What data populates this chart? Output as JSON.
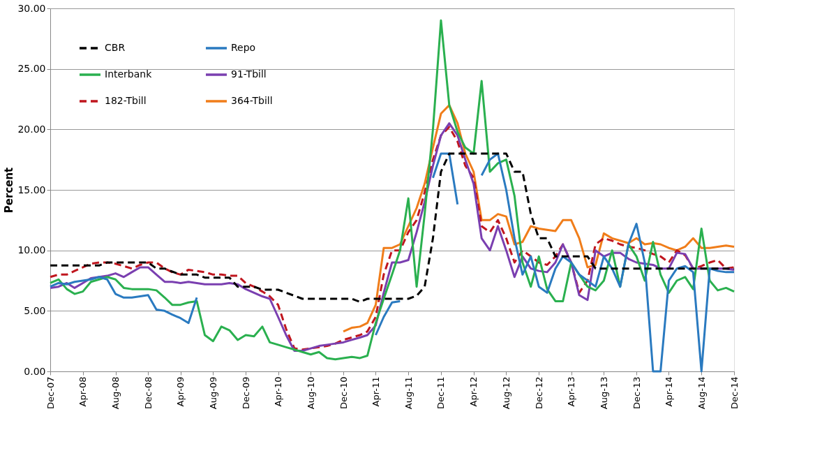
{
  "chart_data": {
    "type": "line",
    "ylabel": "Percent",
    "x": [
      "2007-12",
      "2008-01",
      "2008-02",
      "2008-03",
      "2008-04",
      "2008-05",
      "2008-06",
      "2008-07",
      "2008-08",
      "2008-09",
      "2008-10",
      "2008-11",
      "2008-12",
      "2009-01",
      "2009-02",
      "2009-03",
      "2009-04",
      "2009-05",
      "2009-06",
      "2009-07",
      "2009-08",
      "2009-09",
      "2009-10",
      "2009-11",
      "2009-12",
      "2010-01",
      "2010-02",
      "2010-03",
      "2010-04",
      "2010-05",
      "2010-06",
      "2010-07",
      "2010-08",
      "2010-09",
      "2010-10",
      "2010-11",
      "2010-12",
      "2011-01",
      "2011-02",
      "2011-03",
      "2011-04",
      "2011-05",
      "2011-06",
      "2011-07",
      "2011-08",
      "2011-09",
      "2011-10",
      "2011-11",
      "2011-12",
      "2012-01",
      "2012-02",
      "2012-03",
      "2012-04",
      "2012-05",
      "2012-06",
      "2012-07",
      "2012-08",
      "2012-09",
      "2012-10",
      "2012-11",
      "2012-12",
      "2013-01",
      "2013-02",
      "2013-03",
      "2013-04",
      "2013-05",
      "2013-06",
      "2013-07",
      "2013-08",
      "2013-09",
      "2013-10",
      "2013-11",
      "2013-12",
      "2014-01",
      "2014-02",
      "2014-03",
      "2014-04",
      "2014-05",
      "2014-06",
      "2014-07",
      "2014-08",
      "2014-09",
      "2014-10",
      "2014-11",
      "2014-12"
    ],
    "series": [
      {
        "name": "CBR",
        "color": "#000000",
        "line_style": "dashed",
        "values": [
          8.75,
          8.75,
          8.75,
          8.75,
          8.75,
          8.75,
          8.75,
          9.0,
          9.0,
          9.0,
          9.0,
          9.0,
          9.0,
          8.5,
          8.5,
          8.25,
          8.0,
          8.0,
          8.0,
          7.75,
          7.75,
          7.75,
          7.75,
          7.0,
          7.0,
          7.0,
          6.75,
          6.75,
          6.75,
          6.5,
          6.25,
          6.0,
          6.0,
          6.0,
          6.0,
          6.0,
          6.0,
          6.0,
          5.75,
          6.0,
          6.0,
          6.0,
          6.0,
          6.0,
          6.0,
          6.25,
          7.0,
          11.0,
          16.5,
          18.0,
          18.0,
          18.0,
          18.0,
          18.0,
          18.0,
          18.0,
          18.0,
          16.5,
          16.5,
          13.0,
          11.0,
          11.0,
          9.5,
          9.5,
          9.5,
          9.5,
          9.5,
          8.5,
          8.5,
          8.5,
          8.5,
          8.5,
          8.5,
          8.5,
          8.5,
          8.5,
          8.5,
          8.5,
          8.5,
          8.5,
          8.5,
          8.5,
          8.5,
          8.5,
          8.5
        ]
      },
      {
        "name": "Repo",
        "color": "#2a7ac0",
        "line_style": "solid",
        "values": [
          7.0,
          7.3,
          7.2,
          7.4,
          7.5,
          7.6,
          7.8,
          7.6,
          6.4,
          6.1,
          6.1,
          6.2,
          6.3,
          5.1,
          5.0,
          4.7,
          4.4,
          4.0,
          6.1,
          null,
          null,
          null,
          null,
          null,
          null,
          null,
          null,
          null,
          null,
          null,
          null,
          null,
          null,
          null,
          null,
          null,
          null,
          null,
          null,
          null,
          3.0,
          4.5,
          5.7,
          5.8,
          null,
          null,
          null,
          16.0,
          18.0,
          18.0,
          13.8,
          null,
          null,
          16.2,
          17.5,
          18.0,
          15.0,
          11.0,
          8.0,
          9.5,
          7.0,
          6.5,
          8.5,
          9.5,
          9.0,
          8.0,
          7.5,
          7.0,
          9.5,
          8.5,
          7.0,
          10.5,
          12.2,
          9.0,
          0.0,
          0.0,
          7.5,
          8.5,
          8.7,
          8.2,
          0.0,
          8.5,
          8.3,
          8.2,
          8.2
        ]
      },
      {
        "name": "Interbank",
        "color": "#2ab04f",
        "line_style": "solid",
        "values": [
          7.3,
          7.6,
          6.8,
          6.4,
          6.6,
          7.4,
          7.6,
          7.8,
          7.6,
          6.9,
          6.8,
          6.8,
          6.8,
          6.7,
          6.1,
          5.5,
          5.5,
          5.7,
          5.8,
          3.0,
          2.5,
          3.7,
          3.4,
          2.6,
          3.0,
          2.9,
          3.7,
          2.4,
          2.2,
          2.0,
          1.8,
          1.6,
          1.4,
          1.6,
          1.1,
          1.0,
          1.1,
          1.2,
          1.1,
          1.3,
          4.0,
          6.0,
          8.0,
          10.0,
          14.3,
          7.0,
          13.0,
          20.0,
          29.0,
          22.0,
          19.8,
          18.5,
          18.0,
          24.0,
          16.5,
          17.2,
          17.5,
          14.5,
          9.0,
          7.0,
          9.5,
          6.8,
          5.8,
          5.8,
          9.0,
          8.0,
          7.0,
          6.7,
          7.5,
          10.0,
          7.0,
          10.5,
          9.5,
          7.5,
          10.7,
          8.0,
          6.5,
          7.5,
          7.8,
          6.8,
          11.8,
          7.5,
          6.7,
          6.9,
          6.6
        ]
      },
      {
        "name": "91-Tbill",
        "color": "#7a3fb0",
        "line_style": "solid",
        "values": [
          6.9,
          7.0,
          7.3,
          6.9,
          7.3,
          7.7,
          7.8,
          7.9,
          8.1,
          7.8,
          8.2,
          8.6,
          8.6,
          8.0,
          7.4,
          7.4,
          7.3,
          7.4,
          7.3,
          7.2,
          7.2,
          7.2,
          7.3,
          7.2,
          6.8,
          6.5,
          6.2,
          6.0,
          4.5,
          3.0,
          1.7,
          1.7,
          1.9,
          2.1,
          2.2,
          2.3,
          2.4,
          2.6,
          2.8,
          3.0,
          3.8,
          6.5,
          9.0,
          9.0,
          9.2,
          11.5,
          14.0,
          17.0,
          19.5,
          20.5,
          19.5,
          17.5,
          15.5,
          11.0,
          10.0,
          12.0,
          10.0,
          7.8,
          9.5,
          8.5,
          8.3,
          8.2,
          9.0,
          10.5,
          9.0,
          6.3,
          5.9,
          10.0,
          9.5,
          9.8,
          9.8,
          9.3,
          9.0,
          8.9,
          8.8,
          8.5,
          8.5,
          9.8,
          9.7,
          8.5,
          8.5,
          8.5,
          8.5,
          8.5,
          8.4
        ]
      },
      {
        "name": "182-Tbill",
        "color": "#c0161e",
        "line_style": "dashed",
        "values": [
          7.8,
          8.0,
          8.0,
          8.3,
          8.6,
          8.9,
          9.0,
          9.0,
          8.9,
          8.7,
          8.5,
          8.8,
          9.0,
          9.0,
          8.5,
          8.2,
          8.0,
          8.4,
          8.3,
          8.2,
          8.0,
          8.0,
          7.9,
          7.9,
          7.3,
          7.0,
          6.6,
          6.2,
          5.5,
          3.5,
          1.9,
          1.8,
          1.9,
          2.0,
          2.1,
          2.3,
          2.6,
          2.8,
          3.0,
          3.3,
          4.5,
          8.0,
          10.0,
          10.0,
          11.5,
          12.5,
          14.8,
          17.5,
          19.5,
          20.2,
          19.0,
          17.0,
          16.0,
          12.0,
          11.5,
          12.5,
          11.0,
          9.0,
          10.0,
          9.5,
          9.0,
          8.8,
          9.5,
          10.5,
          9.0,
          6.5,
          7.5,
          10.5,
          11.0,
          10.8,
          10.5,
          10.3,
          10.2,
          10.0,
          9.7,
          9.5,
          9.0,
          10.0,
          9.6,
          8.5,
          8.7,
          9.0,
          9.2,
          8.5,
          8.6
        ]
      },
      {
        "name": "364-Tbill",
        "color": "#f07d1a",
        "line_style": "solid",
        "values": [
          null,
          null,
          null,
          null,
          null,
          null,
          null,
          null,
          null,
          null,
          null,
          null,
          null,
          null,
          null,
          null,
          null,
          null,
          null,
          null,
          null,
          null,
          null,
          null,
          null,
          null,
          null,
          null,
          null,
          null,
          null,
          null,
          null,
          null,
          null,
          null,
          3.3,
          3.6,
          3.7,
          4.0,
          5.5,
          10.2,
          10.2,
          10.5,
          12.0,
          13.5,
          15.5,
          18.5,
          21.3,
          22.0,
          20.5,
          18.0,
          16.5,
          12.5,
          12.5,
          13.0,
          12.8,
          10.5,
          10.7,
          12.0,
          11.8,
          11.7,
          11.6,
          12.5,
          12.5,
          11.0,
          8.6,
          8.8,
          11.4,
          11.0,
          10.8,
          10.6,
          11.0,
          10.5,
          10.6,
          10.5,
          10.2,
          10.0,
          10.3,
          11.0,
          10.2,
          10.2,
          10.3,
          10.4,
          10.3
        ]
      }
    ],
    "xlim": [
      "2007-12",
      "2014-12"
    ],
    "xticks": [
      {
        "value": "2007-12",
        "label": "Dec-07"
      },
      {
        "value": "2008-04",
        "label": "Apr-08"
      },
      {
        "value": "2008-08",
        "label": "Aug-08"
      },
      {
        "value": "2008-12",
        "label": "Dec-08"
      },
      {
        "value": "2009-04",
        "label": "Apr-09"
      },
      {
        "value": "2009-08",
        "label": "Aug-09"
      },
      {
        "value": "2009-12",
        "label": "Dec-09"
      },
      {
        "value": "2010-04",
        "label": "Apr-10"
      },
      {
        "value": "2010-08",
        "label": "Aug-10"
      },
      {
        "value": "2010-12",
        "label": "Dec-10"
      },
      {
        "value": "2011-04",
        "label": "Apr-11"
      },
      {
        "value": "2011-08",
        "label": "Aug-11"
      },
      {
        "value": "2011-12",
        "label": "Dec-11"
      },
      {
        "value": "2012-04",
        "label": "Apr-12"
      },
      {
        "value": "2012-08",
        "label": "Aug-12"
      },
      {
        "value": "2012-12",
        "label": "Dec-12"
      },
      {
        "value": "2013-04",
        "label": "Apr-13"
      },
      {
        "value": "2013-08",
        "label": "Aug-13"
      },
      {
        "value": "2013-12",
        "label": "Dec-13"
      },
      {
        "value": "2014-04",
        "label": "Apr-14"
      },
      {
        "value": "2014-08",
        "label": "Aug-14"
      },
      {
        "value": "2014-12",
        "label": "Dec-14"
      }
    ],
    "ylim": [
      0,
      30
    ],
    "yticks": [
      {
        "value": 0,
        "label": "0.00"
      },
      {
        "value": 5,
        "label": "5.00"
      },
      {
        "value": 10,
        "label": "10.00"
      },
      {
        "value": 15,
        "label": "15.00"
      },
      {
        "value": 20,
        "label": "20.00"
      },
      {
        "value": 25,
        "label": "25.00"
      },
      {
        "value": 30,
        "label": "30.00"
      }
    ],
    "grid": "y",
    "legend": "top left",
    "marker": "none"
  }
}
